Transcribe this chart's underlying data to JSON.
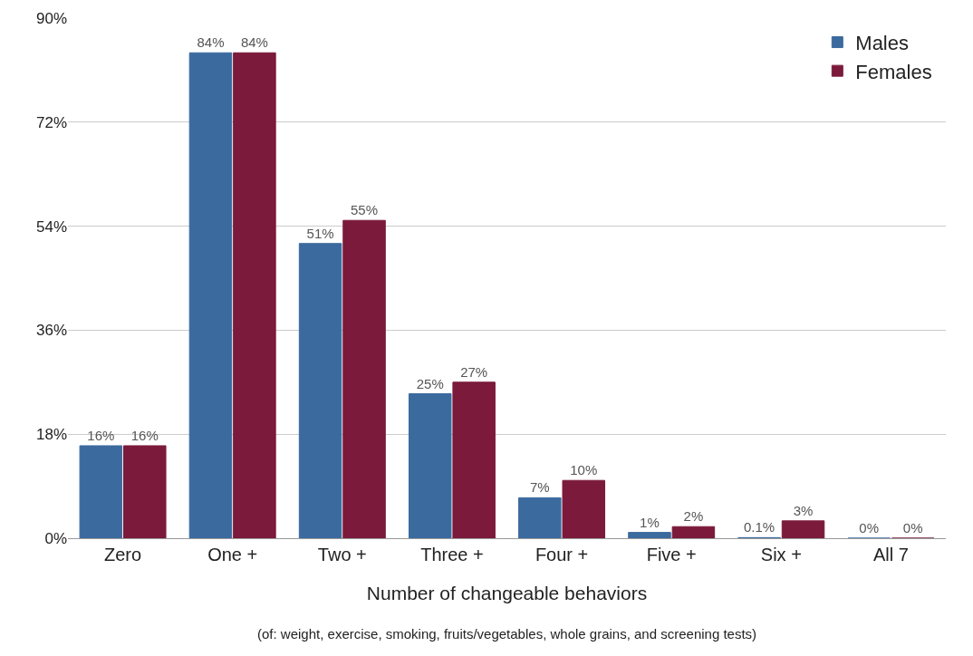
{
  "chart_data": {
    "type": "bar",
    "xlabel": "Number of changeable behaviors",
    "annotations": [
      "(of: weight, exercise, smoking, fruits/vegetables, whole grains, and screening tests)"
    ],
    "categories": [
      "Zero",
      "One +",
      "Two +",
      "Three +",
      "Four +",
      "Five +",
      "Six +",
      "All 7"
    ],
    "series": [
      {
        "name": "Males",
        "color": "#3b6a9e",
        "values": [
          16,
          84,
          51,
          25,
          7,
          1,
          0.1,
          0
        ],
        "value_labels": [
          "16%",
          "84%",
          "51%",
          "25%",
          "7%",
          "1%",
          "0.1%",
          "0%"
        ]
      },
      {
        "name": "Females",
        "color": "#7b1a3b",
        "values": [
          16,
          84,
          55,
          27,
          10,
          2,
          3,
          0
        ],
        "value_labels": [
          "16%",
          "84%",
          "55%",
          "27%",
          "10%",
          "2%",
          "3%",
          "0%"
        ]
      }
    ],
    "ylim": [
      0,
      90
    ],
    "yticks": [
      {
        "value": 0,
        "label": "0%"
      },
      {
        "value": 18,
        "label": "18%"
      },
      {
        "value": 36,
        "label": "36%"
      },
      {
        "value": 54,
        "label": "54%"
      },
      {
        "value": 72,
        "label": "72%"
      },
      {
        "value": 90,
        "label": "90%"
      }
    ],
    "grid": "y",
    "legend": "top right"
  }
}
